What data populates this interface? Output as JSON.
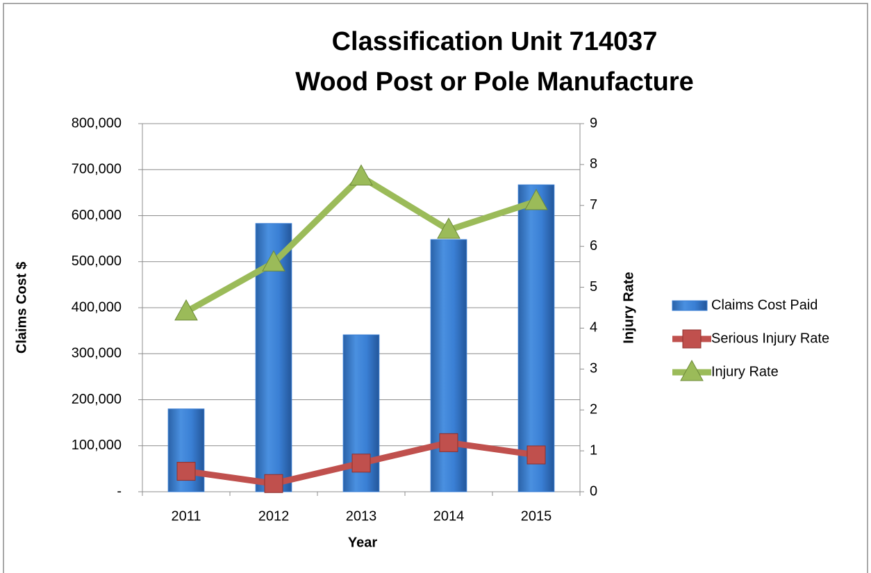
{
  "chart_data": {
    "type": "combo",
    "title": "Classification Unit 714037",
    "subtitle": "Wood Post or Pole Manufacture",
    "x_label": "Year",
    "y_label": "Claims Cost $",
    "y2_label": "Injury Rate",
    "categories": [
      "2011",
      "2012",
      "2013",
      "2014",
      "2015"
    ],
    "series": [
      {
        "name": "Claims Cost Paid",
        "type": "bar",
        "color": "#3b7fd4",
        "values": [
          180000,
          583000,
          341000,
          548000,
          667000
        ]
      },
      {
        "name": "Serious Injury Rate",
        "type": "line",
        "marker": "square",
        "axis": "y2",
        "color": "#c0504d",
        "values": [
          0.5,
          0.2,
          0.7,
          1.2,
          0.9
        ]
      },
      {
        "name": "Injury Rate",
        "type": "line",
        "marker": "triangle",
        "axis": "y2",
        "color": "#9bbb59",
        "values": [
          4.4,
          5.6,
          7.7,
          6.4,
          7.1
        ]
      }
    ],
    "ylim": [
      0,
      800000
    ],
    "yticks": [
      {
        "value": 0,
        "label": "-"
      },
      {
        "value": 100000,
        "label": "100,000"
      },
      {
        "value": 200000,
        "label": "200,000"
      },
      {
        "value": 300000,
        "label": "300,000"
      },
      {
        "value": 400000,
        "label": "400,000"
      },
      {
        "value": 500000,
        "label": "500,000"
      },
      {
        "value": 600000,
        "label": "600,000"
      },
      {
        "value": 700000,
        "label": "700,000"
      },
      {
        "value": 800000,
        "label": "800,000"
      }
    ],
    "y2lim": [
      0,
      9
    ],
    "y2ticks": [
      0,
      1,
      2,
      3,
      4,
      5,
      6,
      7,
      8,
      9
    ],
    "grid": true,
    "legend": "right"
  }
}
